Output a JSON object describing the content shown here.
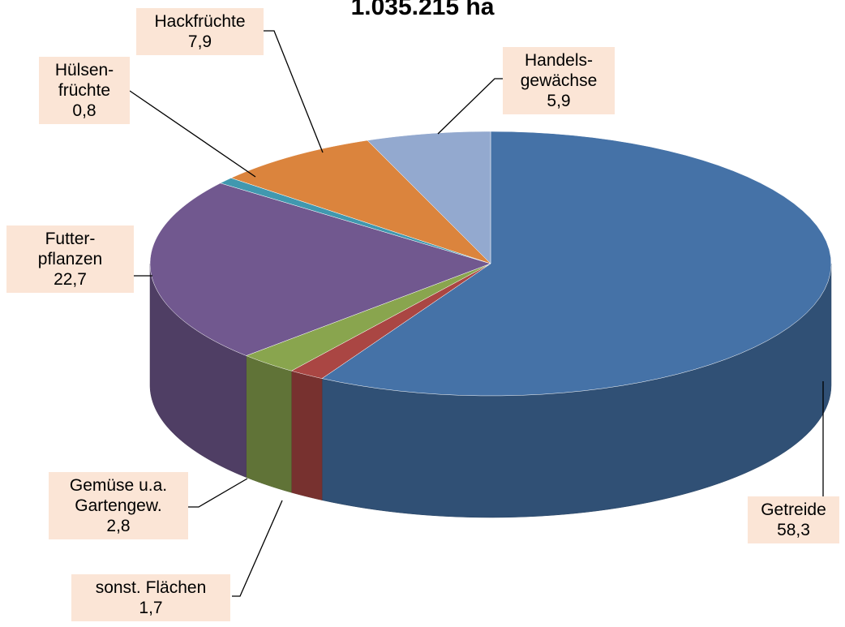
{
  "chart_data": {
    "type": "pie3d",
    "title": "1.035.215 ha",
    "categories": [
      "Getreide",
      "sonst. Flächen",
      "Gemüse u.a.\nGartengew.",
      "Futter-\npflanzen",
      "Hülsen-\nfrüchte",
      "Hackfrüchte",
      "Handels-\ngewächse"
    ],
    "values": [
      58.3,
      1.7,
      2.8,
      22.7,
      0.8,
      7.9,
      5.9
    ],
    "value_labels": [
      "58,3",
      "1,7",
      "2,8",
      "22,7",
      "0,8",
      "7,9",
      "5,9"
    ],
    "colors": [
      "#4572a7",
      "#aa4643",
      "#89a54e",
      "#71588f",
      "#4198af",
      "#db843d",
      "#93a9cf"
    ]
  }
}
